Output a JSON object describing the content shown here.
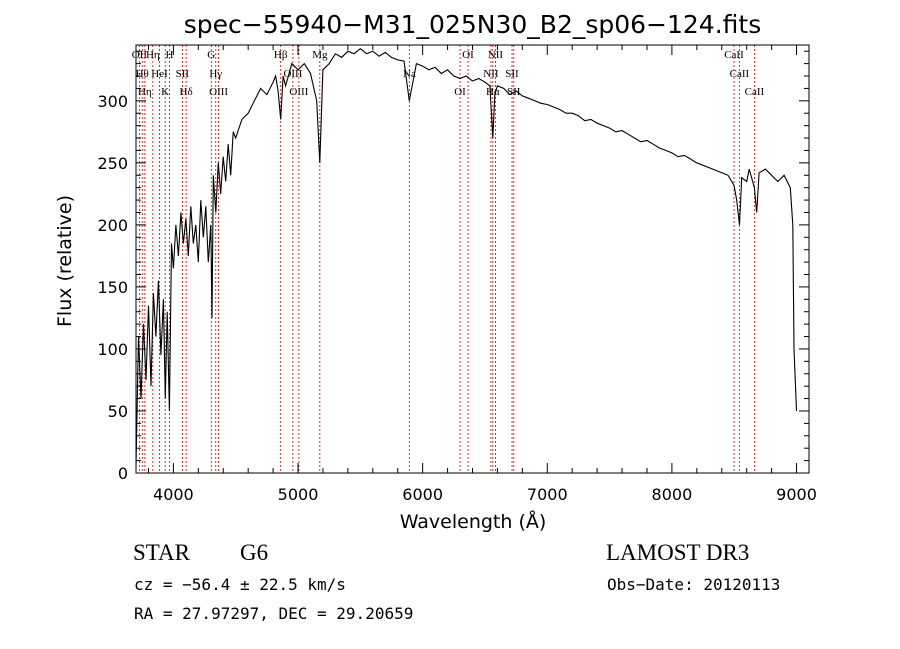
{
  "chart_data": {
    "type": "line",
    "title": "spec−55940−M31_025N30_B2_sp06−124.fits",
    "xlabel": "Wavelength (Å)",
    "ylabel": "Flux (relative)",
    "xlim": [
      3700,
      9100
    ],
    "ylim": [
      0,
      345
    ],
    "xticks": [
      4000,
      5000,
      6000,
      7000,
      8000,
      9000
    ],
    "yticks": [
      0,
      50,
      100,
      150,
      200,
      250,
      300
    ],
    "series": [
      {
        "name": "spectrum",
        "x": [
          3700,
          3720,
          3740,
          3760,
          3780,
          3800,
          3820,
          3840,
          3860,
          3880,
          3900,
          3920,
          3935,
          3950,
          3968,
          3985,
          4000,
          4020,
          4040,
          4060,
          4080,
          4100,
          4120,
          4140,
          4160,
          4180,
          4200,
          4220,
          4240,
          4260,
          4280,
          4300,
          4310,
          4320,
          4340,
          4360,
          4380,
          4400,
          4420,
          4440,
          4460,
          4480,
          4500,
          4550,
          4600,
          4650,
          4700,
          4750,
          4800,
          4820,
          4840,
          4861,
          4880,
          4900,
          4950,
          5000,
          5050,
          5100,
          5150,
          5175,
          5200,
          5250,
          5300,
          5350,
          5400,
          5450,
          5500,
          5550,
          5600,
          5650,
          5700,
          5750,
          5800,
          5850,
          5893,
          5950,
          6000,
          6050,
          6100,
          6150,
          6200,
          6250,
          6300,
          6350,
          6400,
          6450,
          6500,
          6540,
          6563,
          6580,
          6600,
          6650,
          6700,
          6750,
          6800,
          6850,
          6900,
          6950,
          7000,
          7050,
          7100,
          7150,
          7200,
          7250,
          7300,
          7350,
          7400,
          7450,
          7500,
          7550,
          7600,
          7650,
          7700,
          7750,
          7800,
          7850,
          7900,
          7950,
          8000,
          8050,
          8100,
          8150,
          8200,
          8250,
          8300,
          8350,
          8400,
          8450,
          8498,
          8520,
          8542,
          8560,
          8600,
          8620,
          8662,
          8680,
          8700,
          8750,
          8800,
          8850,
          8900,
          8950,
          8970,
          8980,
          9000
        ],
        "values": [
          5,
          110,
          60,
          120,
          75,
          135,
          70,
          145,
          110,
          155,
          95,
          140,
          60,
          130,
          50,
          185,
          165,
          200,
          175,
          210,
          185,
          205,
          175,
          215,
          185,
          200,
          170,
          220,
          190,
          215,
          170,
          200,
          125,
          240,
          210,
          250,
          225,
          255,
          235,
          265,
          240,
          275,
          270,
          285,
          290,
          300,
          310,
          305,
          315,
          320,
          308,
          285,
          320,
          312,
          330,
          325,
          330,
          322,
          300,
          250,
          325,
          330,
          338,
          335,
          340,
          338,
          342,
          338,
          340,
          336,
          339,
          335,
          333,
          332,
          300,
          330,
          328,
          325,
          327,
          322,
          325,
          320,
          318,
          320,
          316,
          318,
          315,
          312,
          270,
          305,
          312,
          310,
          305,
          308,
          304,
          302,
          300,
          298,
          297,
          295,
          293,
          290,
          290,
          288,
          284,
          285,
          282,
          280,
          278,
          275,
          276,
          273,
          270,
          267,
          268,
          265,
          262,
          260,
          258,
          255,
          256,
          253,
          250,
          248,
          246,
          244,
          242,
          240,
          232,
          220,
          200,
          238,
          235,
          245,
          230,
          210,
          242,
          245,
          240,
          235,
          240,
          230,
          200,
          100,
          50
        ]
      }
    ],
    "lines": [
      {
        "wl": 3727,
        "labels": [
          "OII"
        ]
      },
      {
        "wl": 3750,
        "labels": [
          "Hθ"
        ]
      },
      {
        "wl": 3771,
        "labels": [
          "Hη"
        ]
      },
      {
        "wl": 3835,
        "labels": [
          "Hη"
        ]
      },
      {
        "wl": 3889,
        "labels": [
          "HeI"
        ]
      },
      {
        "wl": 3934,
        "labels": [
          "K"
        ]
      },
      {
        "wl": 3969,
        "labels": [
          "H"
        ]
      },
      {
        "wl": 4072,
        "labels": [
          "SII"
        ]
      },
      {
        "wl": 4102,
        "labels": [
          "Hδ"
        ]
      },
      {
        "wl": 4304,
        "labels": [
          "G"
        ]
      },
      {
        "wl": 4340,
        "labels": [
          "Hγ"
        ]
      },
      {
        "wl": 4363,
        "labels": [
          "OIII"
        ]
      },
      {
        "wl": 4861,
        "labels": [
          "Hβ"
        ]
      },
      {
        "wl": 4959,
        "labels": [
          "OIII"
        ]
      },
      {
        "wl": 5007,
        "labels": [
          "OIII"
        ]
      },
      {
        "wl": 5175,
        "labels": [
          "Mg"
        ]
      },
      {
        "wl": 5893,
        "labels": [
          "Na"
        ]
      },
      {
        "wl": 6300,
        "labels": [
          "OI"
        ]
      },
      {
        "wl": 6364,
        "labels": [
          "OI"
        ]
      },
      {
        "wl": 6548,
        "labels": [
          "NII"
        ]
      },
      {
        "wl": 6563,
        "labels": [
          "Hα"
        ]
      },
      {
        "wl": 6584,
        "labels": [
          "NII"
        ]
      },
      {
        "wl": 6717,
        "labels": [
          "SII"
        ]
      },
      {
        "wl": 6731,
        "labels": [
          "SII"
        ]
      },
      {
        "wl": 8498,
        "labels": [
          "CaII"
        ]
      },
      {
        "wl": 8542,
        "labels": [
          "CaII"
        ]
      },
      {
        "wl": 8662,
        "labels": [
          "CaII"
        ]
      }
    ],
    "colors": {
      "spectrum": "#000000",
      "lines": "#cc0000",
      "axes": "#000000"
    }
  },
  "info": {
    "class": "STAR",
    "subclass": "G6",
    "survey": "LAMOST DR3",
    "cz": "cz = −56.4 ± 22.5 km/s",
    "obs_date": "Obs−Date: 20120113",
    "radec": "RA =  27.97297, DEC =  29.20659"
  }
}
